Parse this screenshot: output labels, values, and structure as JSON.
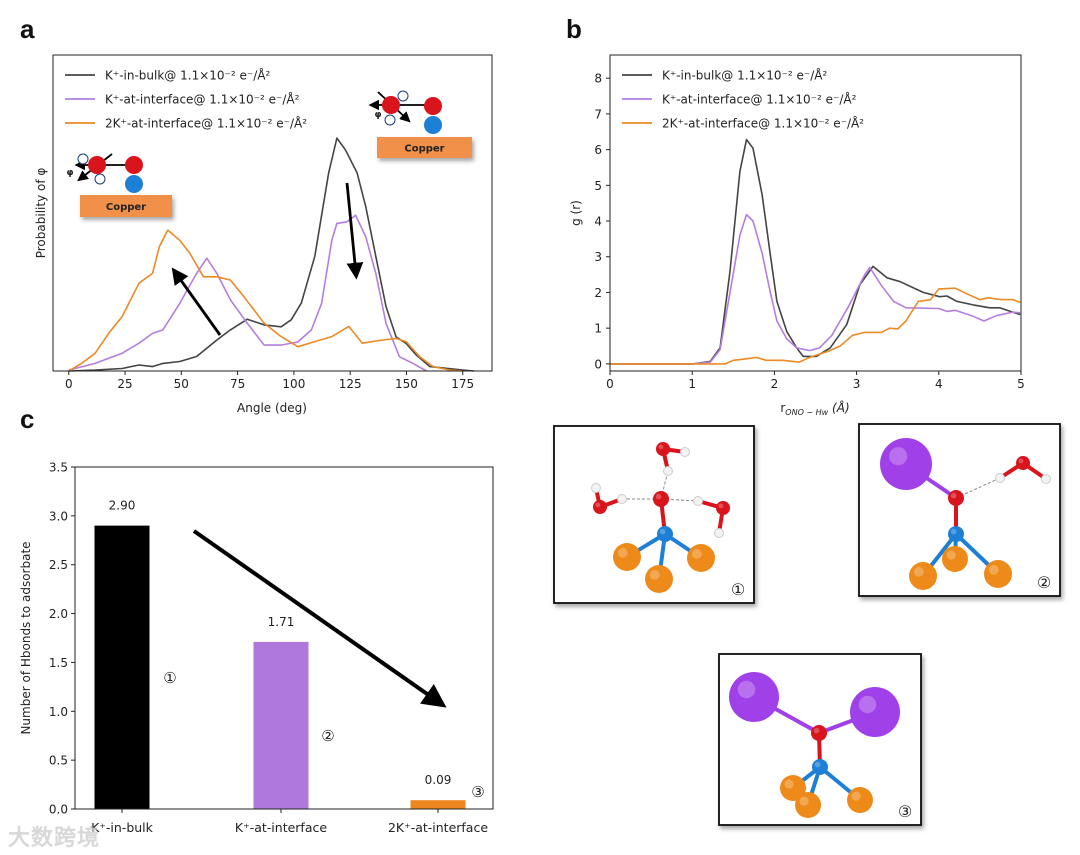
{
  "panel_letters": [
    "a",
    "b",
    "c"
  ],
  "watermark": "大数跨境",
  "colors": {
    "bulk": "#444444",
    "interface": "#b37ee0",
    "two_k": "#ec8a25",
    "bar_bulk": "#000000",
    "bar_interface": "#ae78dc",
    "bar_two_k": "#ee8620",
    "copper": "#f0904a",
    "oxygen": "#d9141c",
    "nitrogen": "#1e7fd6",
    "potassium": "#a040e8",
    "cu_atom": "#ee8a1a"
  },
  "chart_data": [
    {
      "id": "a",
      "type": "line",
      "xlabel": "Angle (deg)",
      "ylabel": "Probability of φ",
      "xlim": [
        -7,
        188
      ],
      "ylim": [
        0,
        1
      ],
      "xticks": [
        "0",
        "25",
        "50",
        "75",
        "100",
        "125",
        "150",
        "175"
      ],
      "grid": false,
      "legend": "top-left",
      "inset_labels": [
        "Copper",
        "Copper"
      ],
      "inset_angle_symbol": "φ",
      "series": [
        {
          "name": "K⁺-in-bulk@ 1.1×10⁻² e⁻/Å²",
          "color": "#444444",
          "x": [
            0,
            11.7,
            23.7,
            31.2,
            37.2,
            41.8,
            49.3,
            56.8,
            65.8,
            71.8,
            79.3,
            86.8,
            94.3,
            98.8,
            103.3,
            109.3,
            115.4,
            119.1,
            122.9,
            128.1,
            131.9,
            136.4,
            140.9,
            145.4,
            149.9,
            154.4,
            160.4,
            175,
            180
          ],
          "y": [
            0,
            0.003,
            0.008,
            0.019,
            0.014,
            0.024,
            0.03,
            0.046,
            0.098,
            0.13,
            0.164,
            0.146,
            0.14,
            0.162,
            0.215,
            0.363,
            0.626,
            0.737,
            0.7,
            0.627,
            0.521,
            0.363,
            0.204,
            0.108,
            0.087,
            0.05,
            0.014,
            0.003,
            0
          ]
        },
        {
          "name": "K⁺-at-interface@ 1.1×10⁻² e⁻/Å²",
          "color": "#b37ee0",
          "x": [
            0,
            11.7,
            23.7,
            31.2,
            37.2,
            41.8,
            49.3,
            56.8,
            61.3,
            65.8,
            71.8,
            79.3,
            86.8,
            94.3,
            101.8,
            107.8,
            112.3,
            116.9,
            119.1,
            123.6,
            127.4,
            131.9,
            136.4,
            140.9,
            146.9,
            152.9,
            158.9
          ],
          "y": [
            0.003,
            0.024,
            0.056,
            0.088,
            0.119,
            0.13,
            0.214,
            0.309,
            0.357,
            0.309,
            0.225,
            0.151,
            0.082,
            0.082,
            0.092,
            0.13,
            0.214,
            0.415,
            0.467,
            0.472,
            0.493,
            0.425,
            0.309,
            0.151,
            0.045,
            0.024,
            0
          ]
        },
        {
          "name": "2K⁺-at-interface@ 1.1×10⁻² e⁻/Å²",
          "color": "#ec8a25",
          "x": [
            0,
            5.7,
            11.7,
            17.7,
            23.7,
            31.2,
            37.2,
            40.2,
            44.0,
            49.3,
            53.8,
            59.8,
            65.8,
            71.8,
            77.8,
            86.8,
            94.3,
            101.8,
            109.3,
            116.9,
            124.4,
            130.4,
            139.4,
            145.4,
            149.9,
            155.9,
            161.9,
            169.4,
            175
          ],
          "y": [
            0,
            0.024,
            0.056,
            0.119,
            0.172,
            0.278,
            0.309,
            0.393,
            0.446,
            0.414,
            0.372,
            0.298,
            0.298,
            0.288,
            0.235,
            0.151,
            0.109,
            0.077,
            0.093,
            0.109,
            0.141,
            0.088,
            0.098,
            0.103,
            0.093,
            0.045,
            0.014,
            0.003,
            0
          ]
        }
      ]
    },
    {
      "id": "b",
      "type": "line",
      "xlabel": "r",
      "xlabel_sub": "Oₙₒ − Hᵂ",
      "xlabel_sub_text": "ONO − Hw",
      "xlabel_unit": " (Å)",
      "ylabel": "g (r)",
      "xlim": [
        0,
        5
      ],
      "ylim": [
        -0.2,
        8.65
      ],
      "xticks": [
        "0",
        "1",
        "2",
        "3",
        "4",
        "5"
      ],
      "yticks": [
        "0",
        "1",
        "2",
        "3",
        "4",
        "5",
        "6",
        "7",
        "8"
      ],
      "grid": false,
      "legend": "top-left",
      "series": [
        {
          "name": "K⁺-in-bulk@ 1.1×10⁻² e⁻/Å²",
          "color": "#444444",
          "x": [
            0,
            1.01,
            1.22,
            1.34,
            1.46,
            1.58,
            1.66,
            1.74,
            1.85,
            1.95,
            2.03,
            2.15,
            2.27,
            2.35,
            2.51,
            2.68,
            2.88,
            3.04,
            3.2,
            3.37,
            3.53,
            3.81,
            4.01,
            4.1,
            4.22,
            4.42,
            4.62,
            4.74,
            4.99
          ],
          "y": [
            0,
            0,
            0.07,
            0.45,
            2.59,
            5.39,
            6.28,
            6.04,
            4.74,
            3.06,
            1.75,
            0.91,
            0.45,
            0.21,
            0.21,
            0.45,
            1.1,
            2.22,
            2.73,
            2.41,
            2.3,
            2.0,
            1.88,
            1.9,
            1.75,
            1.65,
            1.57,
            1.57,
            1.38
          ]
        },
        {
          "name": "K⁺-at-interface@ 1.1×10⁻² e⁻/Å²",
          "color": "#b37ee0",
          "x": [
            0,
            1.01,
            1.22,
            1.34,
            1.46,
            1.58,
            1.66,
            1.74,
            1.85,
            1.95,
            2.03,
            2.15,
            2.27,
            2.43,
            2.55,
            2.7,
            2.9,
            3.1,
            3.16,
            3.3,
            3.45,
            3.6,
            4.0,
            4.1,
            4.2,
            4.4,
            4.55,
            4.7,
            4.9,
            4.99
          ],
          "y": [
            0,
            0,
            0.05,
            0.4,
            2.0,
            3.6,
            4.18,
            4.0,
            3.1,
            2.0,
            1.2,
            0.7,
            0.45,
            0.37,
            0.45,
            0.8,
            1.6,
            2.5,
            2.7,
            2.2,
            1.75,
            1.57,
            1.55,
            1.47,
            1.5,
            1.35,
            1.2,
            1.35,
            1.45,
            1.43
          ]
        },
        {
          "name": "2K⁺-at-interface@ 1.1×10⁻² e⁻/Å²",
          "color": "#ec8a25",
          "x": [
            0,
            1.4,
            1.5,
            1.65,
            1.78,
            1.9,
            2.1,
            2.3,
            2.45,
            2.65,
            2.8,
            2.95,
            3.1,
            3.3,
            3.4,
            3.5,
            3.6,
            3.75,
            3.9,
            4.0,
            4.2,
            4.35,
            4.5,
            4.6,
            4.75,
            4.9,
            4.99
          ],
          "y": [
            0,
            0,
            0.1,
            0.14,
            0.18,
            0.1,
            0.1,
            0.05,
            0.2,
            0.35,
            0.5,
            0.8,
            0.88,
            0.88,
            1.0,
            0.98,
            1.2,
            1.75,
            1.8,
            2.1,
            2.12,
            1.95,
            1.8,
            1.85,
            1.8,
            1.8,
            1.72
          ]
        }
      ]
    },
    {
      "id": "c",
      "type": "bar",
      "ylabel": "Number of Hbonds to adsorbate",
      "ylim": [
        0,
        3.5
      ],
      "yticks": [
        "0.0",
        "0.5",
        "1.0",
        "1.5",
        "2.0",
        "2.5",
        "3.0",
        "3.5"
      ],
      "categories": [
        "K⁺-in-bulk",
        "K⁺-at-interface",
        "2K⁺-at-interface"
      ],
      "values": [
        2.9,
        1.71,
        0.09
      ],
      "value_labels": [
        "2.90",
        "1.71",
        "0.09"
      ],
      "bar_colors": [
        "#000000",
        "#ae78dc",
        "#ee8620"
      ],
      "annotations": [
        "①",
        "②",
        "③"
      ]
    }
  ],
  "structures": [
    {
      "label": "①"
    },
    {
      "label": "②"
    },
    {
      "label": "③"
    }
  ]
}
